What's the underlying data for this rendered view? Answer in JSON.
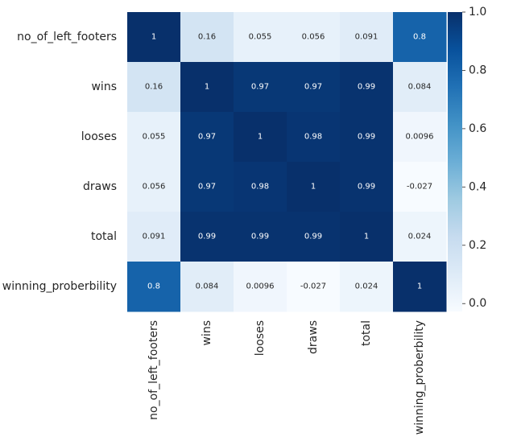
{
  "chart_data": {
    "type": "heatmap",
    "title": "",
    "row_labels": [
      "no_of_left_footers",
      "wins",
      "looses",
      "draws",
      "total",
      "winning_proberbility"
    ],
    "col_labels": [
      "no_of_left_footers",
      "wins",
      "looses",
      "draws",
      "total",
      "winning_proberbility"
    ],
    "values": [
      [
        1,
        0.16,
        0.055,
        0.056,
        0.091,
        0.8
      ],
      [
        0.16,
        1,
        0.97,
        0.97,
        0.99,
        0.084
      ],
      [
        0.055,
        0.97,
        1,
        0.98,
        0.99,
        0.0096
      ],
      [
        0.056,
        0.97,
        0.98,
        1,
        0.99,
        -0.027
      ],
      [
        0.091,
        0.99,
        0.99,
        0.99,
        1,
        0.024
      ],
      [
        0.8,
        0.084,
        0.0096,
        -0.027,
        0.024,
        1
      ]
    ],
    "value_labels": [
      [
        "1",
        "0.16",
        "0.055",
        "0.056",
        "0.091",
        "0.8"
      ],
      [
        "0.16",
        "1",
        "0.97",
        "0.97",
        "0.99",
        "0.084"
      ],
      [
        "0.055",
        "0.97",
        "1",
        "0.98",
        "0.99",
        "0.0096"
      ],
      [
        "0.056",
        "0.97",
        "0.98",
        "1",
        "0.99",
        "-0.027"
      ],
      [
        "0.091",
        "0.99",
        "0.99",
        "0.99",
        "1",
        "0.024"
      ],
      [
        "0.8",
        "0.084",
        "0.0096",
        "-0.027",
        "0.024",
        "1"
      ]
    ],
    "colormap": "Blues",
    "vmin": -0.027,
    "vmax": 1,
    "colorbar": {
      "ticks": [
        0,
        0.2,
        0.4,
        0.6,
        0.8,
        1
      ],
      "tick_labels": [
        "0.0",
        "0.2",
        "0.4",
        "0.6",
        "0.8",
        "1.0"
      ]
    },
    "annotations": true,
    "grid": false,
    "legend": "colorbar-right"
  }
}
